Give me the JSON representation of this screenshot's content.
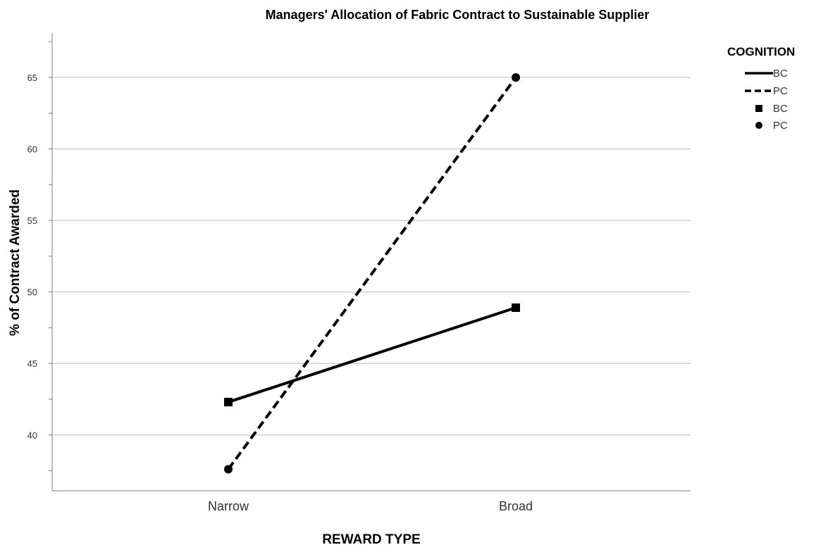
{
  "chart_data": {
    "type": "line",
    "title": "Managers' Allocation of Fabric Contract to Sustainable Supplier",
    "xlabel": "REWARD TYPE",
    "ylabel": "% of Contract Awarded",
    "categories": [
      "Narrow",
      "Broad"
    ],
    "ylim": [
      36.1,
      68.1
    ],
    "yticks": [
      40,
      45,
      50,
      55,
      60,
      65
    ],
    "ytick_labels": [
      "40",
      "45",
      "50",
      "55",
      "60",
      "65"
    ],
    "minor_ytick_step": 2.5,
    "grid": true,
    "legend": {
      "title": "COGNITION",
      "position": "right",
      "entries": [
        {
          "label": "BC",
          "kind": "line",
          "dash": "solid"
        },
        {
          "label": "PC",
          "kind": "line",
          "dash": "dashed"
        },
        {
          "label": "BC",
          "kind": "marker",
          "marker": "square"
        },
        {
          "label": "PC",
          "kind": "marker",
          "marker": "circle"
        }
      ]
    },
    "series": [
      {
        "name": "BC",
        "values": [
          42.3,
          48.9
        ],
        "dash": "solid",
        "marker": "square"
      },
      {
        "name": "PC",
        "values": [
          37.6,
          65.0
        ],
        "dash": "dashed",
        "marker": "circle"
      }
    ],
    "colors": {
      "line": "#000000",
      "grid": "#c8c8c8",
      "axis": "#7f7f7f",
      "text": "#000000",
      "tick_text": "#333333"
    }
  }
}
